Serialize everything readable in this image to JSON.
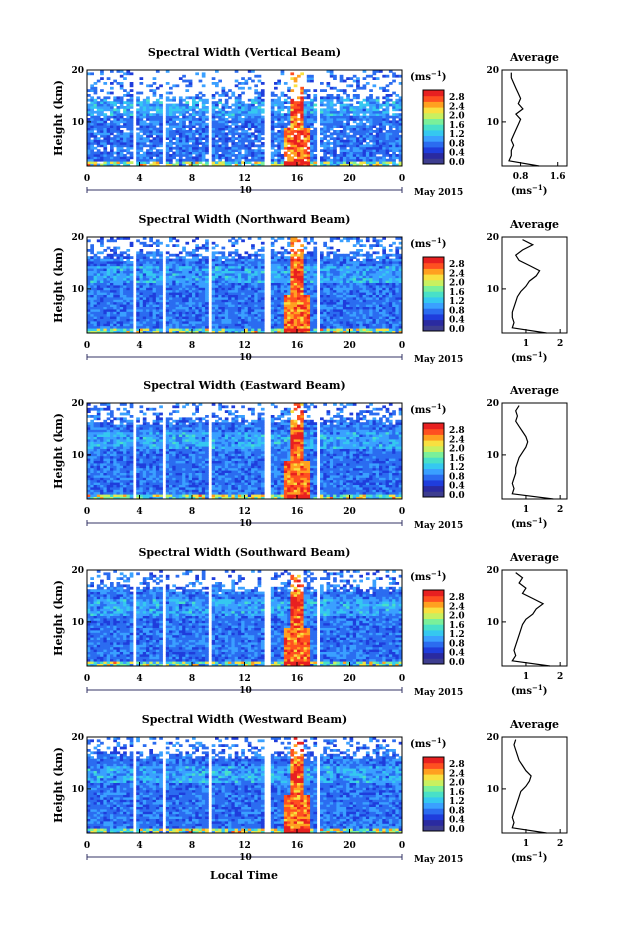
{
  "figure": {
    "xlabel": "Local Time",
    "date_day": "10",
    "date_label": "May 2015",
    "ylabel": "Height (km)",
    "avg_title": "Average",
    "avg_xlabel_base": "(ms",
    "unit_base": "(ms",
    "unit_sup": "−1",
    "unit_close": ")"
  },
  "colors": {
    "scale": [
      "#3d3d8f",
      "#2a2aa0",
      "#1f3ddc",
      "#2b6cf0",
      "#3aa0ff",
      "#35c8f0",
      "#48e0c8",
      "#7af09a",
      "#c8f060",
      "#f8e040",
      "#ffa020",
      "#ff5020",
      "#e82020"
    ],
    "gap": "#ffffff",
    "profile": "#000000",
    "axis": "#000000"
  },
  "chart_data": [
    {
      "type": "heatmap",
      "title": "Spectral Width (Vertical Beam)",
      "x_ticks": [
        "0",
        "4",
        "8",
        "12",
        "16",
        "20",
        "0"
      ],
      "y_ticks": [
        "20",
        "10"
      ],
      "xlim": [
        0,
        24
      ],
      "ylim": [
        1.5,
        20
      ],
      "gaps_hours": [
        [
          3.4,
          3.8
        ],
        [
          5.7,
          6.0
        ],
        [
          9.2,
          9.5
        ],
        [
          13.6,
          13.9
        ],
        [
          17.5,
          17.8
        ],
        [
          20.4,
          20.6
        ]
      ],
      "colorbar_ticks": [
        "2.8",
        "2.4",
        "2.0",
        "1.6",
        "1.2",
        "0.8",
        "0.4",
        "0.0"
      ],
      "colorbar_range": [
        0.0,
        3.0
      ],
      "profile": {
        "title": "Average",
        "x_ticks": [
          "0.8",
          "1.6"
        ],
        "xlim": [
          0.4,
          1.8
        ],
        "heights": [
          1.5,
          2.5,
          3.5,
          4.5,
          5.5,
          6.5,
          7.5,
          8.5,
          9.5,
          10.5,
          11.5,
          12.5,
          13.5,
          14.5,
          15.5,
          16.5,
          17.5,
          18.5,
          19.5
        ],
        "values": [
          1.2,
          0.55,
          0.6,
          0.6,
          0.65,
          0.6,
          0.65,
          0.7,
          0.75,
          0.8,
          0.7,
          0.85,
          0.75,
          0.8,
          0.75,
          0.7,
          0.65,
          0.6,
          0.6
        ]
      }
    },
    {
      "type": "heatmap",
      "title": "Spectral Width (Northward Beam)",
      "x_ticks": [
        "0",
        "4",
        "8",
        "12",
        "16",
        "20",
        "0"
      ],
      "y_ticks": [
        "20",
        "10"
      ],
      "xlim": [
        0,
        24
      ],
      "ylim": [
        1.5,
        20
      ],
      "gaps_hours": [
        [
          3.4,
          3.8
        ],
        [
          5.7,
          6.0
        ],
        [
          9.2,
          9.5
        ],
        [
          13.6,
          13.9
        ],
        [
          17.5,
          17.8
        ],
        [
          20.4,
          20.6
        ]
      ],
      "colorbar_ticks": [
        "2.8",
        "2.4",
        "2.0",
        "1.6",
        "1.2",
        "0.8",
        "0.4",
        "0.0"
      ],
      "colorbar_range": [
        0.0,
        3.0
      ],
      "profile": {
        "title": "Average",
        "x_ticks": [
          "1",
          "2"
        ],
        "xlim": [
          0.3,
          2.2
        ],
        "heights": [
          1.5,
          2.5,
          3.5,
          4.5,
          5.5,
          6.5,
          7.5,
          8.5,
          9.5,
          10.5,
          11.5,
          12.5,
          13.5,
          14.5,
          15.5,
          16.5,
          17.5,
          18.5,
          19.5
        ],
        "values": [
          1.6,
          0.6,
          0.65,
          0.6,
          0.6,
          0.65,
          0.7,
          0.75,
          0.85,
          1.0,
          1.1,
          1.3,
          1.4,
          1.1,
          0.8,
          0.7,
          0.9,
          1.2,
          0.9
        ]
      }
    },
    {
      "type": "heatmap",
      "title": "Spectral Width (Eastward Beam)",
      "x_ticks": [
        "0",
        "4",
        "8",
        "12",
        "16",
        "20",
        "0"
      ],
      "y_ticks": [
        "20",
        "10"
      ],
      "xlim": [
        0,
        24
      ],
      "ylim": [
        1.5,
        20
      ],
      "gaps_hours": [
        [
          3.4,
          3.8
        ],
        [
          5.7,
          6.0
        ],
        [
          9.2,
          9.5
        ],
        [
          13.6,
          13.9
        ],
        [
          17.5,
          17.8
        ],
        [
          20.4,
          20.6
        ]
      ],
      "colorbar_ticks": [
        "2.8",
        "2.4",
        "2.0",
        "1.6",
        "1.2",
        "0.8",
        "0.4",
        "0.0"
      ],
      "colorbar_range": [
        0.0,
        3.0
      ],
      "profile": {
        "title": "Average",
        "x_ticks": [
          "1",
          "2"
        ],
        "xlim": [
          0.3,
          2.2
        ],
        "heights": [
          1.5,
          2.5,
          3.5,
          4.5,
          5.5,
          6.5,
          7.5,
          8.5,
          9.5,
          10.5,
          11.5,
          12.5,
          13.5,
          14.5,
          15.5,
          16.5,
          17.5,
          18.5,
          19.5
        ],
        "values": [
          1.8,
          0.6,
          0.65,
          0.6,
          0.65,
          0.7,
          0.7,
          0.75,
          0.8,
          0.9,
          1.0,
          1.05,
          1.0,
          0.9,
          0.8,
          0.7,
          0.75,
          0.7,
          0.8
        ]
      }
    },
    {
      "type": "heatmap",
      "title": "Spectral Width (Southward Beam)",
      "x_ticks": [
        "0",
        "4",
        "8",
        "12",
        "16",
        "20",
        "0"
      ],
      "y_ticks": [
        "20",
        "10"
      ],
      "xlim": [
        0,
        24
      ],
      "ylim": [
        1.5,
        20
      ],
      "gaps_hours": [
        [
          3.4,
          3.8
        ],
        [
          5.7,
          6.0
        ],
        [
          9.2,
          9.5
        ],
        [
          13.6,
          13.9
        ],
        [
          17.5,
          17.8
        ],
        [
          20.4,
          20.6
        ]
      ],
      "colorbar_ticks": [
        "2.8",
        "2.4",
        "2.0",
        "1.6",
        "1.2",
        "0.8",
        "0.4",
        "0.0"
      ],
      "colorbar_range": [
        0.0,
        3.0
      ],
      "profile": {
        "title": "Average",
        "x_ticks": [
          "1",
          "2"
        ],
        "xlim": [
          0.3,
          2.2
        ],
        "heights": [
          1.5,
          2.5,
          3.5,
          4.5,
          5.5,
          6.5,
          7.5,
          8.5,
          9.5,
          10.5,
          11.5,
          12.5,
          13.5,
          14.5,
          15.5,
          16.5,
          17.5,
          18.5,
          19.5
        ],
        "values": [
          1.7,
          0.6,
          0.7,
          0.65,
          0.7,
          0.75,
          0.8,
          0.85,
          0.9,
          1.0,
          1.2,
          1.3,
          1.5,
          1.2,
          0.9,
          1.0,
          0.8,
          0.9,
          0.7
        ]
      }
    },
    {
      "type": "heatmap",
      "title": "Spectral Width (Westward Beam)",
      "x_ticks": [
        "0",
        "4",
        "8",
        "12",
        "16",
        "20",
        "0"
      ],
      "y_ticks": [
        "20",
        "10"
      ],
      "xlim": [
        0,
        24
      ],
      "ylim": [
        1.5,
        20
      ],
      "gaps_hours": [
        [
          3.4,
          3.8
        ],
        [
          5.7,
          6.0
        ],
        [
          9.2,
          9.5
        ],
        [
          13.6,
          13.9
        ],
        [
          17.5,
          17.8
        ],
        [
          20.4,
          20.6
        ]
      ],
      "colorbar_ticks": [
        "2.8",
        "2.4",
        "2.0",
        "1.6",
        "1.2",
        "0.8",
        "0.4",
        "0.0"
      ],
      "colorbar_range": [
        0.0,
        3.0
      ],
      "profile": {
        "title": "Average",
        "x_ticks": [
          "1",
          "2"
        ],
        "xlim": [
          0.3,
          2.2
        ],
        "heights": [
          1.5,
          2.5,
          3.5,
          4.5,
          5.5,
          6.5,
          7.5,
          8.5,
          9.5,
          10.5,
          11.5,
          12.5,
          13.5,
          14.5,
          15.5,
          16.5,
          17.5,
          18.5,
          19.5
        ],
        "values": [
          1.6,
          0.6,
          0.65,
          0.6,
          0.65,
          0.7,
          0.75,
          0.8,
          0.85,
          1.0,
          1.1,
          1.15,
          1.0,
          0.9,
          0.8,
          0.75,
          0.7,
          0.65,
          0.7
        ]
      }
    }
  ]
}
